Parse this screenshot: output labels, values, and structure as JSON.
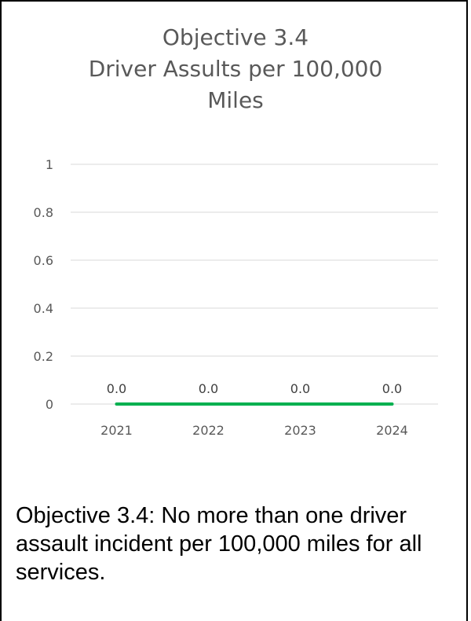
{
  "chart_data": {
    "type": "line",
    "title_lines": [
      "Objective 3.4",
      "Driver Assults per 100,000",
      "Miles"
    ],
    "categories": [
      "2021",
      "2022",
      "2023",
      "2024"
    ],
    "series": [
      {
        "values": [
          0.0,
          0.0,
          0.0,
          0.0
        ],
        "color": "#00b050"
      }
    ],
    "data_labels": [
      "0.0",
      "0.0",
      "0.0",
      "0.0"
    ],
    "y_ticks": [
      "0",
      "0.2",
      "0.4",
      "0.6",
      "0.8",
      "1"
    ],
    "ylim": [
      0,
      1
    ],
    "grid": true,
    "legend": "none"
  },
  "caption": "Objective 3.4: No more than one driver assault incident per 100,000 miles for all services."
}
